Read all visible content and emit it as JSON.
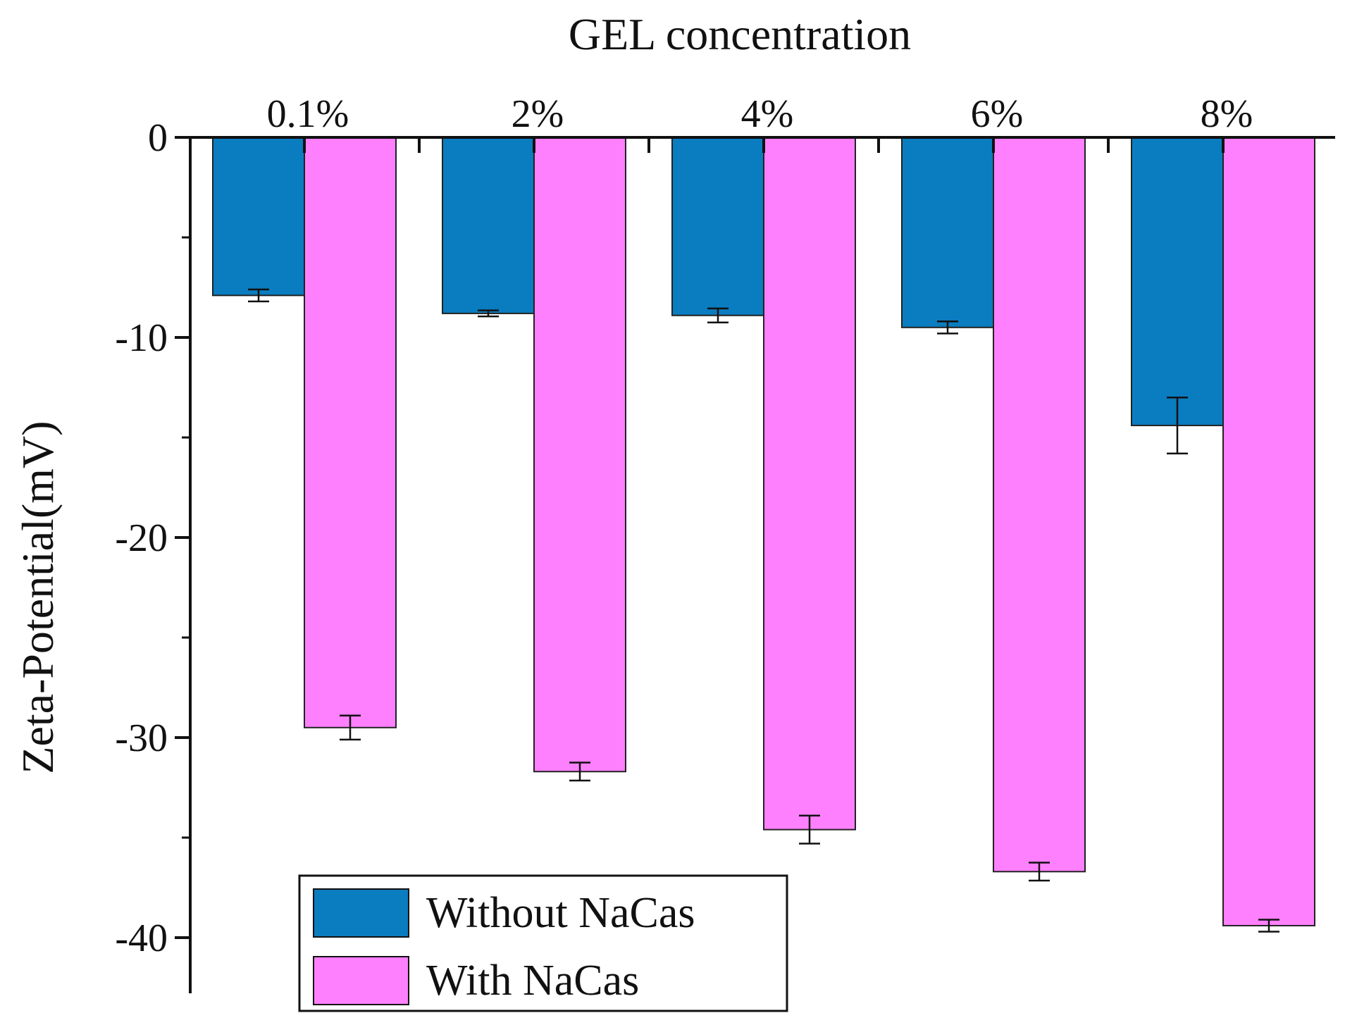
{
  "chart_data": {
    "type": "bar",
    "title": "",
    "xlabel": "GEL concentration",
    "ylabel": "Zeta-Potential(mV)",
    "x_axis_position": "top",
    "categories": [
      "0.1%",
      "2%",
      "4%",
      "6%",
      "8%"
    ],
    "yticks": [
      {
        "value": 0,
        "label": "0"
      },
      {
        "value": -10,
        "label": "-10"
      },
      {
        "value": -20,
        "label": "-20"
      },
      {
        "value": -30,
        "label": "-30"
      },
      {
        "value": -40,
        "label": "-40"
      }
    ],
    "ylim": [
      -42,
      0
    ],
    "grid": false,
    "legend_position": "bottom-left",
    "series": [
      {
        "name": "Without NaCas",
        "color": "#0a7cc0",
        "values": [
          -7.9,
          -8.8,
          -8.9,
          -9.5,
          -14.4
        ],
        "errors": [
          0.3,
          0.15,
          0.35,
          0.3,
          1.4
        ]
      },
      {
        "name": "With NaCas",
        "color": "#ff80ff",
        "values": [
          -29.5,
          -31.7,
          -34.6,
          -36.7,
          -39.4
        ],
        "errors": [
          0.6,
          0.45,
          0.7,
          0.45,
          0.3
        ]
      }
    ]
  }
}
